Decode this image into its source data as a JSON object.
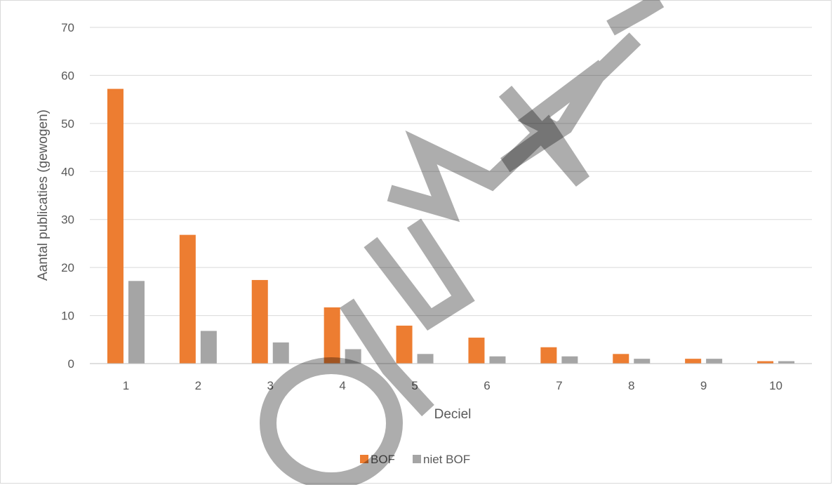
{
  "chart_data": {
    "type": "bar",
    "title": "",
    "xlabel": "Deciel",
    "ylabel": "Aantal publicaties (gewogen)",
    "categories": [
      "1",
      "2",
      "3",
      "4",
      "5",
      "6",
      "7",
      "8",
      "9",
      "10"
    ],
    "ylim": [
      0,
      70
    ],
    "yticks": [
      "0",
      "10",
      "20",
      "30",
      "40",
      "50",
      "60",
      "70"
    ],
    "grid": true,
    "legend_position": "bottom",
    "series": [
      {
        "name": "BOF",
        "color": "#ed7d31",
        "values": [
          57.2,
          26.8,
          17.4,
          11.7,
          7.9,
          5.4,
          3.4,
          2.0,
          1.0,
          0.5
        ]
      },
      {
        "name": "niet BOF",
        "color": "#a5a5a5",
        "values": [
          17.2,
          6.8,
          4.4,
          3.0,
          2.0,
          1.5,
          1.5,
          1.0,
          1.0,
          0.5
        ]
      }
    ],
    "watermark": "BOUWEL"
  }
}
